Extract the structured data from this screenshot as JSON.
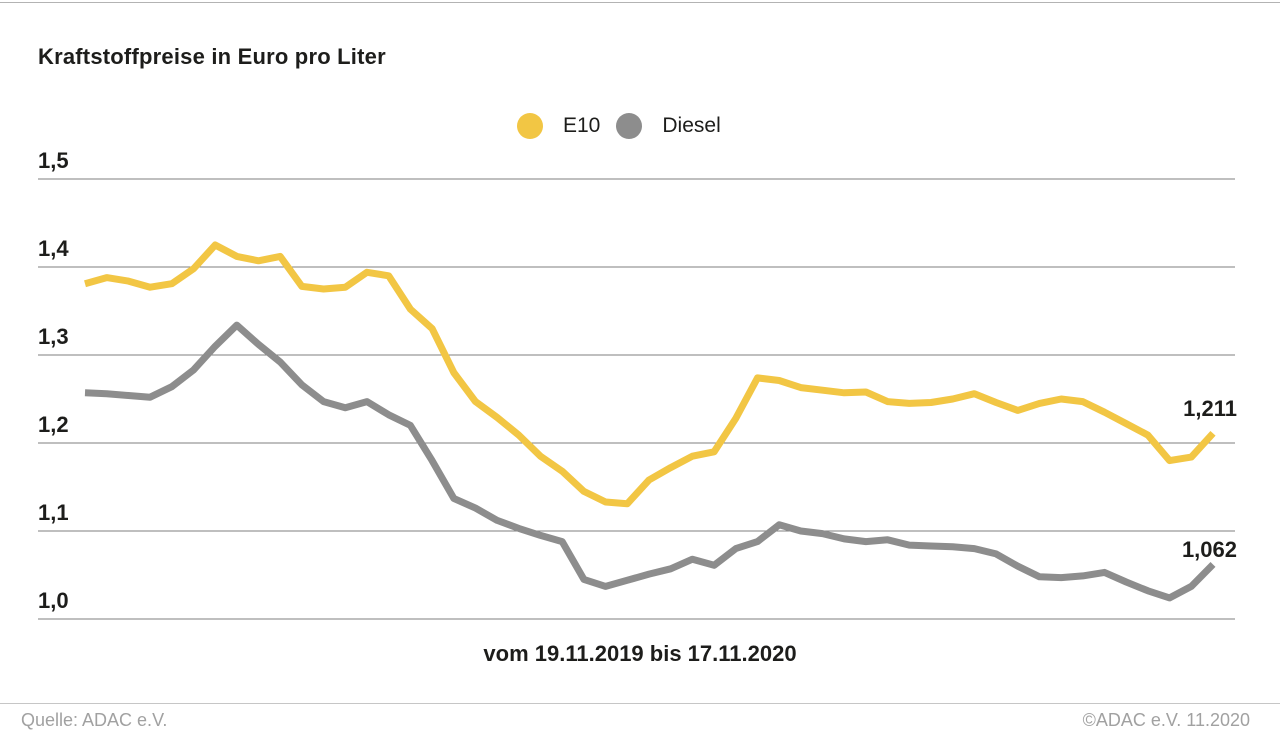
{
  "chart_data": {
    "type": "line",
    "title": "Kraftstoffpreise in Euro pro Liter",
    "xlabel": "vom 19.11.2019 bis 17.11.2020",
    "ylim": [
      1.0,
      1.5
    ],
    "grid": true,
    "legend_position": "top-center",
    "x_period": {
      "start": "19.11.2019",
      "end": "17.11.2020",
      "interval": "weekly"
    },
    "y_ticks": [
      {
        "value": 1.5,
        "label": "1,5"
      },
      {
        "value": 1.4,
        "label": "1,4"
      },
      {
        "value": 1.3,
        "label": "1,3"
      },
      {
        "value": 1.2,
        "label": "1,2"
      },
      {
        "value": 1.1,
        "label": "1,1"
      },
      {
        "value": 1.0,
        "label": "1,0"
      }
    ],
    "legend": [
      {
        "label": "E10",
        "color": "#F2C644"
      },
      {
        "label": "Diesel",
        "color": "#8D8D8D"
      }
    ],
    "series": [
      {
        "name": "Diesel",
        "color": "#8D8D8D",
        "end_label": "1,062",
        "final_value": 1.062,
        "values": [
          1.257,
          1.256,
          1.254,
          1.252,
          1.264,
          1.283,
          1.31,
          1.334,
          1.312,
          1.292,
          1.266,
          1.247,
          1.24,
          1.247,
          1.232,
          1.22,
          1.18,
          1.137,
          1.126,
          1.112,
          1.103,
          1.095,
          1.088,
          1.045,
          1.037,
          1.044,
          1.051,
          1.057,
          1.068,
          1.061,
          1.08,
          1.088,
          1.107,
          1.1,
          1.097,
          1.091,
          1.088,
          1.09,
          1.084,
          1.083,
          1.082,
          1.08,
          1.074,
          1.06,
          1.048,
          1.047,
          1.049,
          1.053,
          1.042,
          1.032,
          1.024,
          1.037,
          1.062
        ]
      },
      {
        "name": "E10",
        "color": "#F2C644",
        "end_label": "1,211",
        "final_value": 1.211,
        "values": [
          1.381,
          1.388,
          1.384,
          1.377,
          1.381,
          1.398,
          1.425,
          1.412,
          1.407,
          1.412,
          1.378,
          1.375,
          1.377,
          1.394,
          1.39,
          1.352,
          1.33,
          1.28,
          1.247,
          1.229,
          1.209,
          1.185,
          1.168,
          1.145,
          1.133,
          1.131,
          1.158,
          1.172,
          1.185,
          1.19,
          1.228,
          1.274,
          1.271,
          1.263,
          1.26,
          1.257,
          1.258,
          1.247,
          1.245,
          1.246,
          1.25,
          1.256,
          1.246,
          1.237,
          1.245,
          1.25,
          1.247,
          1.235,
          1.222,
          1.209,
          1.18,
          1.184,
          1.211
        ]
      }
    ]
  },
  "footer": {
    "source": "Quelle: ADAC e.V.",
    "copyright": "©ADAC e.V. 11.2020"
  }
}
